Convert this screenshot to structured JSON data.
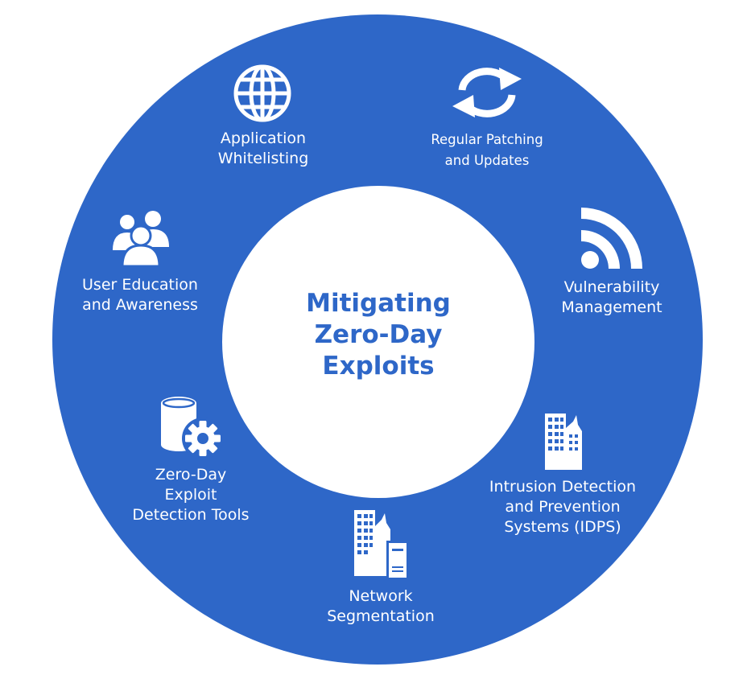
{
  "hub": {
    "title_line1": "Mitigating",
    "title_line2": "Zero-Day",
    "title_line3": "Exploits"
  },
  "items": [
    {
      "icon": "globe-icon",
      "line1": "Application",
      "line2": "Whitelisting"
    },
    {
      "icon": "refresh-icon",
      "line1": "Regular Patching",
      "line2": "and Updates"
    },
    {
      "icon": "signal-icon",
      "line1": "Vulnerability",
      "line2": "Management"
    },
    {
      "icon": "buildings-icon",
      "line1": "Intrusion Detection",
      "line2": "and Prevention",
      "line3": "Systems (IDPS)"
    },
    {
      "icon": "building-server-icon",
      "line1": "Network",
      "line2": "Segmentation"
    },
    {
      "icon": "database-gear-icon",
      "line1": "Zero-Day",
      "line2": "Exploit",
      "line3": "Detection Tools"
    },
    {
      "icon": "users-icon",
      "line1": "User Education",
      "line2": "and Awareness"
    }
  ],
  "colors": {
    "ring": "#2e67c8",
    "hub": "#ffffff",
    "hub_text": "#2e67c8",
    "item_text": "#ffffff"
  }
}
